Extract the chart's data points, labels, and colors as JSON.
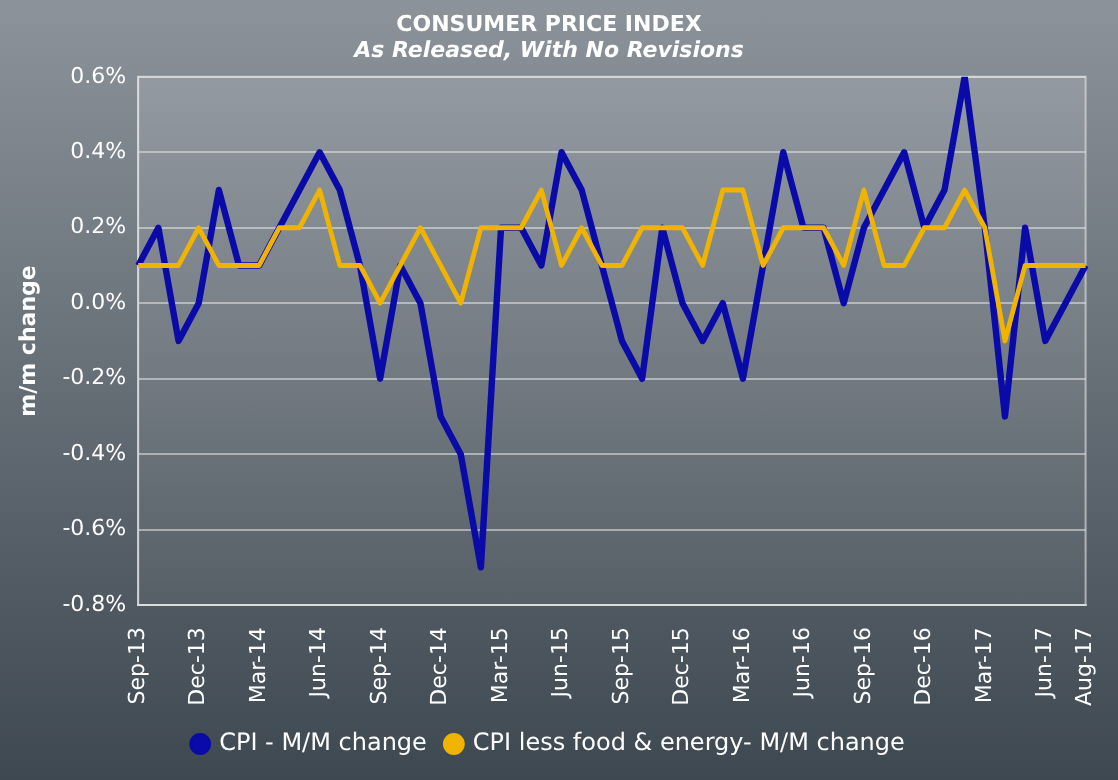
{
  "chart_data": {
    "type": "line",
    "title": "CONSUMER PRICE INDEX",
    "subtitle": "As Released, With No Revisions",
    "ylabel": "m/m change",
    "categories": [
      "Sep-13",
      null,
      null,
      "Dec-13",
      null,
      null,
      "Mar-14",
      null,
      null,
      "Jun-14",
      null,
      null,
      "Sep-14",
      null,
      null,
      "Dec-14",
      null,
      null,
      "Mar-15",
      null,
      null,
      "Jun-15",
      null,
      null,
      "Sep-15",
      null,
      null,
      "Dec-15",
      null,
      null,
      "Mar-16",
      null,
      null,
      "Jun-16",
      null,
      null,
      "Sep-16",
      null,
      null,
      "Dec-16",
      null,
      null,
      "Mar-17",
      null,
      null,
      "Jun-17",
      null,
      "Aug-17"
    ],
    "series": [
      {
        "name": "CPI - M/M change",
        "color": "#0a0aa8",
        "values": [
          0.1,
          0.2,
          -0.1,
          0.0,
          0.3,
          0.1,
          0.1,
          0.2,
          0.3,
          0.4,
          0.3,
          0.1,
          -0.2,
          0.1,
          0.0,
          -0.3,
          -0.4,
          -0.7,
          0.2,
          0.2,
          0.1,
          0.4,
          0.3,
          0.1,
          -0.1,
          -0.2,
          0.2,
          0.0,
          -0.1,
          0.0,
          -0.2,
          0.1,
          0.4,
          0.2,
          0.2,
          0.0,
          0.2,
          0.3,
          0.4,
          0.2,
          0.3,
          0.6,
          0.2,
          -0.3,
          0.2,
          -0.1,
          0.0,
          0.1
        ]
      },
      {
        "name": "CPI less food & energy- M/M change",
        "color": "#f0b400",
        "values": [
          0.1,
          0.1,
          0.1,
          0.2,
          0.1,
          0.1,
          0.1,
          0.2,
          0.2,
          0.3,
          0.1,
          0.1,
          0.0,
          0.1,
          0.2,
          0.1,
          0.0,
          0.2,
          0.2,
          0.2,
          0.3,
          0.1,
          0.2,
          0.1,
          0.1,
          0.2,
          0.2,
          0.2,
          0.1,
          0.3,
          0.3,
          0.1,
          0.2,
          0.2,
          0.2,
          0.1,
          0.3,
          0.1,
          0.1,
          0.2,
          0.2,
          0.3,
          0.2,
          -0.1,
          0.1,
          0.1,
          0.1,
          0.1
        ]
      }
    ],
    "ylim": [
      -0.8,
      0.6
    ],
    "yticks": [
      {
        "value": -0.8,
        "label": "-0.8%"
      },
      {
        "value": -0.6,
        "label": "-0.6%"
      },
      {
        "value": -0.4,
        "label": "-0.4%"
      },
      {
        "value": -0.2,
        "label": "-0.2%"
      },
      {
        "value": 0,
        "label": "0.0%"
      },
      {
        "value": 0.2,
        "label": "0.2%"
      },
      {
        "value": 0.4,
        "label": "0.4%"
      },
      {
        "value": 0.6,
        "label": "0.6%"
      }
    ],
    "grid": "y",
    "legend": "bottom",
    "marker": "none",
    "line_style": "solid"
  }
}
